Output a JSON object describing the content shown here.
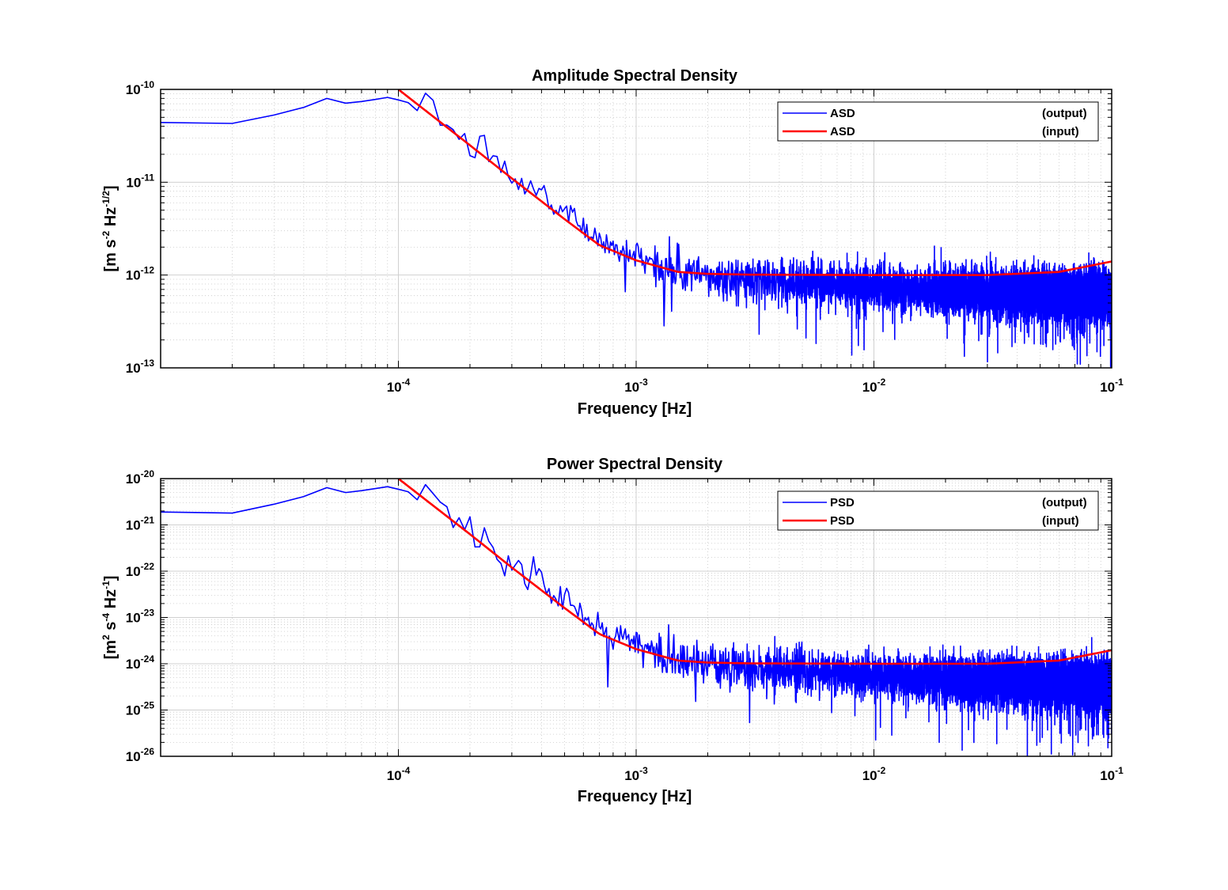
{
  "chart_data": [
    {
      "type": "line",
      "title": "Amplitude Spectral Density",
      "xlabel": "Frequency  [Hz]",
      "ylabel": "[m s-2 Hz-1/2]",
      "ylabel_parts": [
        {
          "t": "[m s",
          "sup": false
        },
        {
          "t": "-2",
          "sup": true
        },
        {
          "t": " Hz",
          "sup": false
        },
        {
          "t": "-1/2",
          "sup": true
        },
        {
          "t": "]",
          "sup": false
        }
      ],
      "xscale": "log",
      "yscale": "log",
      "xlim": [
        1e-05,
        0.1
      ],
      "ylim": [
        1e-13,
        1e-10
      ],
      "x_ticks": [
        {
          "base": "10",
          "exp": "-4"
        },
        {
          "base": "10",
          "exp": "-3"
        },
        {
          "base": "10",
          "exp": "-2"
        },
        {
          "base": "10",
          "exp": "-1"
        }
      ],
      "y_ticks": [
        {
          "base": "10",
          "exp": "-13"
        },
        {
          "base": "10",
          "exp": "-12"
        },
        {
          "base": "10",
          "exp": "-11"
        },
        {
          "base": "10",
          "exp": "-10"
        }
      ],
      "grid": true,
      "legend_position": "top-right",
      "series": [
        {
          "name": "ASD (output)",
          "legend_left": "ASD",
          "legend_right": "(output)",
          "color": "#0000ff",
          "style": "noisy measured spectrum",
          "points": [
            [
              1e-05,
              4.4e-11
            ],
            [
              2e-05,
              4.3e-11
            ],
            [
              3e-05,
              5.3e-11
            ],
            [
              4e-05,
              6.4e-11
            ],
            [
              5e-05,
              8e-11
            ],
            [
              6e-05,
              7.1e-11
            ],
            [
              7e-05,
              7.4e-11
            ],
            [
              8e-05,
              7.8e-11
            ],
            [
              9e-05,
              8.2e-11
            ],
            [
              0.0001,
              7.7e-11
            ],
            [
              0.00011,
              7.2e-11
            ],
            [
              0.000125,
              5.4e-11
            ],
            [
              0.00014,
              6.7e-11
            ],
            [
              0.00016,
              3.7e-11
            ],
            [
              0.00018,
              3.4e-11
            ],
            [
              0.0002,
              2.2e-11
            ],
            [
              0.00023,
              2.5e-11
            ],
            [
              0.00026,
              1.5e-11
            ],
            [
              0.0003,
              1.1e-11
            ],
            [
              0.00035,
              8e-12
            ],
            [
              0.0004,
              9.5e-12
            ],
            [
              0.00045,
              4.3e-12
            ],
            [
              0.0005,
              5.5e-12
            ],
            [
              0.0006,
              3.3e-12
            ],
            [
              0.0007,
              2.5e-12
            ],
            [
              0.0008,
              2e-12
            ],
            [
              0.001,
              1.7e-12
            ],
            [
              0.0013,
              1.2e-12
            ],
            [
              0.002,
              9.5e-13
            ],
            [
              0.005,
              8.5e-13
            ],
            [
              0.01,
              7.5e-13
            ],
            [
              0.03,
              6.5e-13
            ],
            [
              0.1,
              6e-13
            ]
          ]
        },
        {
          "name": "ASD (input)",
          "legend_left": "ASD",
          "legend_right": "(input)",
          "color": "#ff0000",
          "points": [
            [
              0.0001,
              1e-10
            ],
            [
              0.0002,
              2.5e-11
            ],
            [
              0.0003,
              1.1e-11
            ],
            [
              0.0005,
              4e-12
            ],
            [
              0.0007,
              2.1e-12
            ],
            [
              0.001,
              1.44e-12
            ],
            [
              0.0015,
              1.08e-12
            ],
            [
              0.002,
              1.03e-12
            ],
            [
              0.003,
              1.01e-12
            ],
            [
              0.01,
              1e-12
            ],
            [
              0.03,
              1e-12
            ],
            [
              0.06,
              1.08e-12
            ],
            [
              0.1,
              1.4e-12
            ]
          ]
        }
      ]
    },
    {
      "type": "line",
      "title": "Power Spectral Density",
      "xlabel": "Frequency  [Hz]",
      "ylabel": "[m2 s-4 Hz-1]",
      "ylabel_parts": [
        {
          "t": "[m",
          "sup": false
        },
        {
          "t": "2",
          "sup": true
        },
        {
          "t": " s",
          "sup": false
        },
        {
          "t": "-4",
          "sup": true
        },
        {
          "t": " Hz",
          "sup": false
        },
        {
          "t": "-1",
          "sup": true
        },
        {
          "t": "]",
          "sup": false
        }
      ],
      "xscale": "log",
      "yscale": "log",
      "xlim": [
        1e-05,
        0.1
      ],
      "ylim": [
        1e-26,
        1e-20
      ],
      "x_ticks": [
        {
          "base": "10",
          "exp": "-4"
        },
        {
          "base": "10",
          "exp": "-3"
        },
        {
          "base": "10",
          "exp": "-2"
        },
        {
          "base": "10",
          "exp": "-1"
        }
      ],
      "y_ticks": [
        {
          "base": "10",
          "exp": "-26"
        },
        {
          "base": "10",
          "exp": "-25"
        },
        {
          "base": "10",
          "exp": "-24"
        },
        {
          "base": "10",
          "exp": "-23"
        },
        {
          "base": "10",
          "exp": "-22"
        },
        {
          "base": "10",
          "exp": "-21"
        },
        {
          "base": "10",
          "exp": "-20"
        }
      ],
      "grid": true,
      "legend_position": "top-right",
      "series": [
        {
          "name": "PSD (output)",
          "legend_left": "PSD",
          "legend_right": "(output)",
          "color": "#0000ff",
          "style": "noisy measured spectrum",
          "points": [
            [
              1e-05,
              1.9e-21
            ],
            [
              2e-05,
              1.8e-21
            ],
            [
              3e-05,
              2.8e-21
            ],
            [
              4e-05,
              4.1e-21
            ],
            [
              5e-05,
              6.4e-21
            ],
            [
              6e-05,
              5e-21
            ],
            [
              7e-05,
              5.5e-21
            ],
            [
              8e-05,
              6.1e-21
            ],
            [
              9e-05,
              6.7e-21
            ],
            [
              0.0001,
              5.9e-21
            ],
            [
              0.00011,
              5.2e-21
            ],
            [
              0.000125,
              2.9e-21
            ],
            [
              0.00014,
              4.5e-21
            ],
            [
              0.00016,
              1.4e-21
            ],
            [
              0.00018,
              1.2e-21
            ],
            [
              0.0002,
              4.8e-22
            ],
            [
              0.00023,
              6.2e-22
            ],
            [
              0.00026,
              2.2e-22
            ],
            [
              0.0003,
              1.2e-22
            ],
            [
              0.00035,
              6.4e-23
            ],
            [
              0.0004,
              9e-23
            ],
            [
              0.00045,
              1.8e-23
            ],
            [
              0.0005,
              3e-23
            ],
            [
              0.0006,
              1.1e-23
            ],
            [
              0.0007,
              6.2e-24
            ],
            [
              0.0008,
              4e-24
            ],
            [
              0.001,
              2.9e-24
            ],
            [
              0.0013,
              1.4e-24
            ],
            [
              0.002,
              9e-25
            ],
            [
              0.005,
              7.2e-25
            ],
            [
              0.01,
              5.6e-25
            ],
            [
              0.03,
              4.2e-25
            ],
            [
              0.1,
              3.6e-25
            ]
          ]
        },
        {
          "name": "PSD (input)",
          "legend_left": "PSD",
          "legend_right": "(input)",
          "color": "#ff0000",
          "points": [
            [
              0.0001,
              1e-20
            ],
            [
              0.0002,
              6.3e-22
            ],
            [
              0.0003,
              1.2e-22
            ],
            [
              0.0005,
              1.6e-23
            ],
            [
              0.0007,
              4.4e-24
            ],
            [
              0.001,
              2.07e-24
            ],
            [
              0.0015,
              1.17e-24
            ],
            [
              0.002,
              1.06e-24
            ],
            [
              0.003,
              1.02e-24
            ],
            [
              0.01,
              1e-24
            ],
            [
              0.03,
              1e-24
            ],
            [
              0.06,
              1.17e-24
            ],
            [
              0.1,
              1.96e-24
            ]
          ]
        }
      ]
    }
  ]
}
